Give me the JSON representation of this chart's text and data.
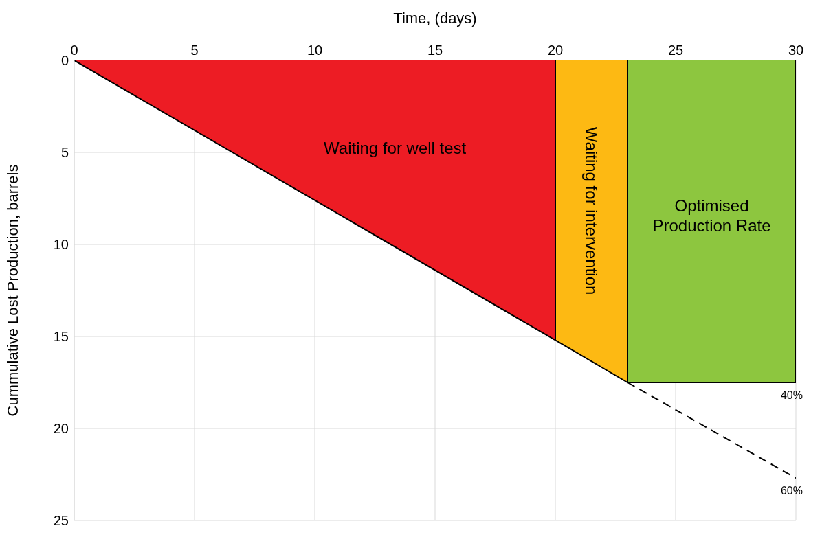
{
  "chart_data": {
    "type": "area",
    "xlabel": "Time, (days)",
    "ylabel": "Cummulative Lost Production, barrels",
    "xlim": [
      0,
      30
    ],
    "xticks": [
      0,
      5,
      10,
      15,
      20,
      25,
      30
    ],
    "ylim": [
      25,
      0
    ],
    "yticks": [
      0,
      5,
      10,
      15,
      20,
      25
    ],
    "grid": true,
    "series": [
      {
        "name": "Waiting for well test",
        "color": "#ed1c24",
        "x": [
          0,
          20,
          20
        ],
        "values": [
          0,
          15.2,
          0
        ]
      },
      {
        "name": "Waiting for intervention",
        "color": "#fdb913",
        "x": [
          20,
          20,
          23,
          23
        ],
        "values": [
          0,
          15.2,
          17.5,
          0
        ]
      },
      {
        "name": "Optimised Production Rate",
        "color": "#8dc63f",
        "x": [
          23,
          23,
          30,
          30
        ],
        "values": [
          0,
          17.5,
          17.5,
          0
        ]
      },
      {
        "type": "line",
        "color": "#000000",
        "line_style": "dashed",
        "x": [
          23,
          30
        ],
        "values": [
          17.5,
          22.7
        ]
      }
    ],
    "annotations": [
      {
        "text": "40%",
        "x": 30,
        "y": 17.5
      },
      {
        "text": "60%",
        "x": 30,
        "y": 22.7
      }
    ]
  }
}
